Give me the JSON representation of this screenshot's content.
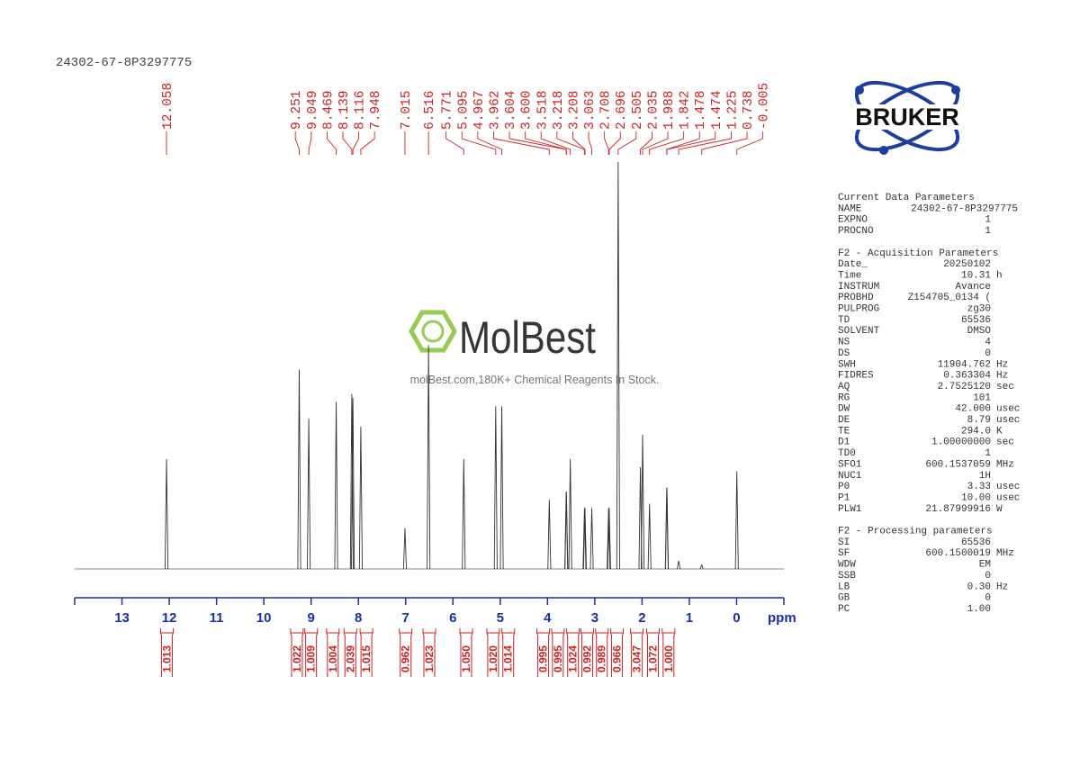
{
  "sample_title": "24302-67-8P3297775",
  "watermark": {
    "brand": "MolBest",
    "tagline": "molBest.com,180K+ Chemical Reagents In Stock."
  },
  "logo": {
    "text": "BRUKER"
  },
  "chart_data": {
    "type": "nmr",
    "xlim": [
      14,
      -1
    ],
    "xticks": [
      13,
      12,
      11,
      10,
      9,
      8,
      7,
      6,
      5,
      4,
      3,
      2,
      1,
      0
    ],
    "x_label": "ppm",
    "color": "#333333",
    "label_color": "#cc2222",
    "axis_color": "#1a2fb0",
    "peaks": {
      "ppm": [
        12.058,
        9.251,
        9.049,
        8.469,
        8.139,
        8.116,
        7.948,
        7.015,
        6.516,
        5.771,
        5.095,
        4.967,
        3.962,
        3.604,
        3.6,
        3.518,
        3.218,
        3.208,
        3.063,
        2.708,
        2.696,
        2.505,
        2.035,
        1.988,
        1.842,
        1.478,
        1.474,
        1.225,
        0.738,
        -0.005
      ],
      "value_labels": [
        "12.058",
        "9.251",
        "9.049",
        "8.469",
        "8.139",
        "8.116",
        "7.948",
        "7.015",
        "6.516",
        "5.771",
        "5.095",
        "4.967",
        "3.962",
        "3.604",
        "3.600",
        "3.518",
        "3.218",
        "3.208",
        "3.063",
        "2.708",
        "2.696",
        "2.505",
        "2.035",
        "1.988",
        "1.842",
        "1.478",
        "1.474",
        "1.225",
        "0.738",
        "-0.005"
      ],
      "heights": [
        27,
        49,
        37,
        41,
        43,
        42,
        35,
        10,
        55,
        27,
        40,
        40,
        17,
        19,
        19,
        27,
        15,
        15,
        15,
        15,
        15,
        100,
        25,
        33,
        16,
        20,
        20,
        2,
        1,
        24
      ]
    },
    "integrals": {
      "x": [
        12.05,
        9.3,
        9.0,
        8.54,
        8.17,
        7.83,
        7.0,
        6.5,
        5.72,
        5.15,
        4.83,
        4.09,
        3.78,
        3.46,
        3.16,
        2.85,
        2.53,
        2.11,
        1.77,
        1.44
      ],
      "values": [
        1.013,
        1.022,
        1.009,
        1.004,
        2.039,
        1.015,
        0.962,
        1.023,
        1.05,
        1.02,
        1.014,
        0.995,
        0.995,
        1.024,
        0.992,
        0.989,
        0.966,
        3.047,
        1.072,
        1.0
      ],
      "value_labels": [
        "1.013",
        "1.022",
        "1.009",
        "1.004",
        "2.039",
        "1.015",
        "0.962",
        "1.023",
        "1.050",
        "1.020",
        "1.014",
        "0.995",
        "0.995",
        "1.024",
        "0.992",
        "0.989",
        "0.966",
        "3.047",
        "1.072",
        "1.000"
      ]
    }
  },
  "parameters": [
    {
      "title": "Current Data Parameters",
      "rows": [
        [
          "NAME",
          "24302-67-8P3297775"
        ],
        [
          "EXPNO",
          "1"
        ],
        [
          "PROCNO",
          "1"
        ]
      ]
    },
    {
      "title": "F2 - Acquisition Parameters",
      "rows": [
        [
          "Date_",
          "20250102"
        ],
        [
          "Time",
          "10.31",
          "h"
        ],
        [
          "INSTRUM",
          "Avance"
        ],
        [
          "PROBHD",
          "Z154705_0134 ("
        ],
        [
          "PULPROG",
          "zg30"
        ],
        [
          "TD",
          "65536"
        ],
        [
          "SOLVENT",
          "DMSO"
        ],
        [
          "NS",
          "4"
        ],
        [
          "DS",
          "0"
        ],
        [
          "SWH",
          "11904.762",
          "Hz"
        ],
        [
          "FIDRES",
          "0.363304",
          "Hz"
        ],
        [
          "AQ",
          "2.7525120",
          "sec"
        ],
        [
          "RG",
          "101"
        ],
        [
          "DW",
          "42.000",
          "usec"
        ],
        [
          "DE",
          "8.79",
          "usec"
        ],
        [
          "TE",
          "294.0",
          "K"
        ],
        [
          "D1",
          "1.00000000",
          "sec"
        ],
        [
          "TD0",
          "1"
        ],
        [
          "SFO1",
          "600.1537059",
          "MHz"
        ],
        [
          "NUC1",
          "1H"
        ],
        [
          "P0",
          "3.33",
          "usec"
        ],
        [
          "P1",
          "10.00",
          "usec"
        ],
        [
          "PLW1",
          "21.87999916",
          "W"
        ]
      ]
    },
    {
      "title": "F2 - Processing parameters",
      "rows": [
        [
          "SI",
          "65536"
        ],
        [
          "SF",
          "600.1500019",
          "MHz"
        ],
        [
          "WDW",
          "EM"
        ],
        [
          "SSB",
          "0"
        ],
        [
          "LB",
          "0.30",
          "Hz"
        ],
        [
          "GB",
          "0"
        ],
        [
          "PC",
          "1.00"
        ]
      ]
    }
  ]
}
